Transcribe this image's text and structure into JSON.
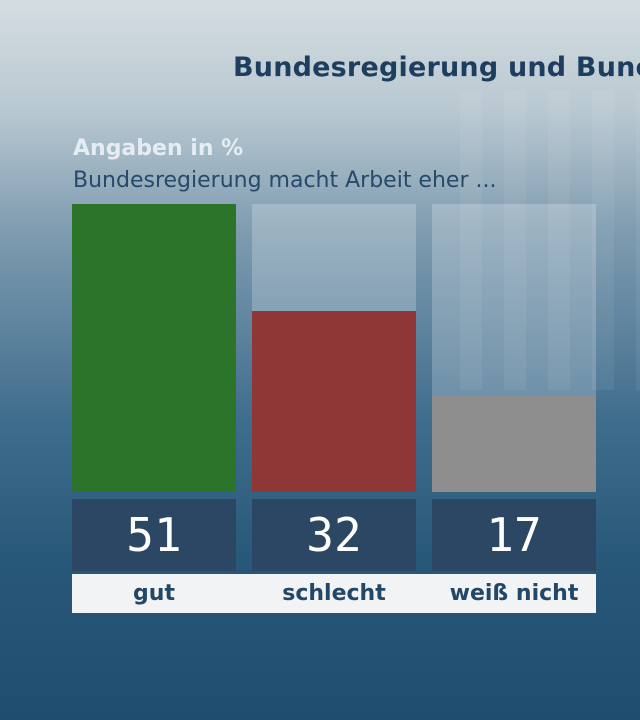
{
  "header": {
    "title": "Bundesregierung und Bunc",
    "unit_note": "Angaben in %",
    "question": "Bundesregierung macht Arbeit eher ..."
  },
  "colors": {
    "gut": "#2b7429",
    "schlecht": "#8e3736",
    "weiss_nicht": "#8e8e8e",
    "value_box": "#2c4764"
  },
  "chart_data": {
    "type": "bar",
    "title": "Bundesregierung und Bunc",
    "subtitle": "Bundesregierung macht Arbeit eher ...",
    "unit": "Angaben in %",
    "categories": [
      "gut",
      "schlecht",
      "weiß nicht"
    ],
    "values": [
      51,
      32,
      17
    ],
    "value_labels": [
      "51",
      "32",
      "17"
    ],
    "ylim": [
      0,
      51
    ],
    "grid": false,
    "legend": "none"
  }
}
